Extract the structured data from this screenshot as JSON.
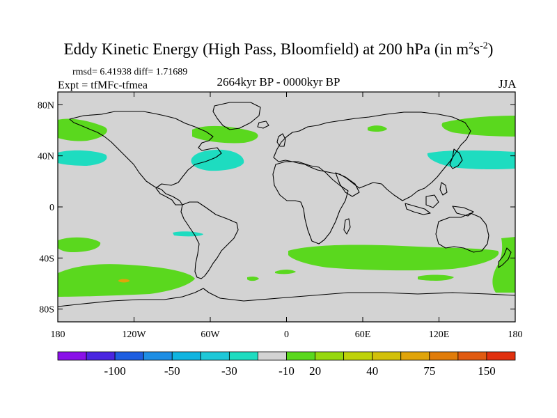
{
  "title": {
    "main": "Eddy Kinetic Energy (High Pass, Bloomfield) at 200 hPa (in m",
    "sup1": "2",
    "mid": "s",
    "sup2": "-2",
    "end": ")"
  },
  "stats": "rmsd= 6.41938 diff= 1.71689",
  "experiment": "Expt = tfMFc-tfmea",
  "period": "2664kyr BP - 0000kyr BP",
  "season": "JJA",
  "axes": {
    "lat_labels": [
      "80N",
      "40N",
      "0",
      "40S",
      "80S"
    ],
    "lat_values": [
      80,
      40,
      0,
      -40,
      -80
    ],
    "lon_labels": [
      "180",
      "120W",
      "60W",
      "0",
      "60E",
      "120E",
      "180"
    ],
    "lon_values": [
      -180,
      -120,
      -60,
      0,
      60,
      120,
      180
    ]
  },
  "colorbar": {
    "labels": [
      "-100",
      "-50",
      "-30",
      "-10",
      "20",
      "40",
      "75",
      "150"
    ],
    "colors": [
      "#8a10e8",
      "#4a26e0",
      "#1e5ee0",
      "#1e8ee4",
      "#10b4e0",
      "#1ec8d8",
      "#1edcc0",
      "#d3d3d3",
      "#5ad81e",
      "#96d80e",
      "#bed20a",
      "#d2c00a",
      "#e0a40a",
      "#e07c0a",
      "#e05a10",
      "#e0300e"
    ]
  },
  "colors": {
    "background_field": "#d3d3d3",
    "positive_20": "#5ad81e",
    "negative_10": "#1edcc0",
    "positive_75": "#e0a40a"
  }
}
